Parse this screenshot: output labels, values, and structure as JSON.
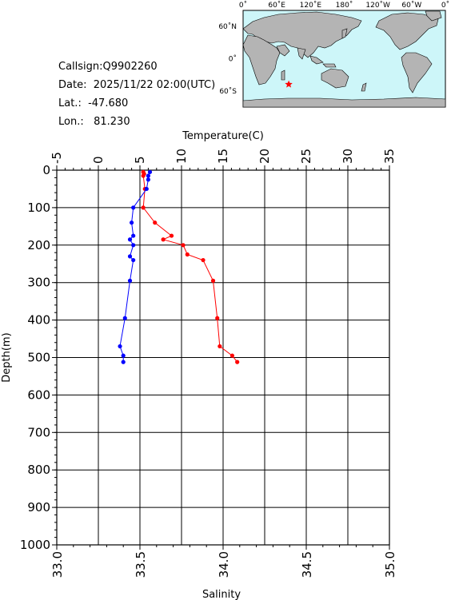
{
  "station": {
    "callsign": "Callsign:Q9902260",
    "date": "Date:  2025/11/22 02:00(UTC)",
    "lat": "Lat.:  -47.680",
    "lon": "Lon.:   81.230"
  },
  "map": {
    "top_labels": [
      "0˚",
      "60˚E",
      "120˚E",
      "180˚",
      "120˚W",
      "60˚W",
      "0˚"
    ],
    "side_labels": [
      "60˚N",
      "0˚",
      "60˚S"
    ],
    "marker_lon": 81.23,
    "marker_lat": -47.68,
    "colors": {
      "ocean": "#cdf6f9",
      "land": "#b4b4b4",
      "marker": "#ff0000"
    }
  },
  "chart_data": {
    "type": "line",
    "title": "",
    "temperature_axis": {
      "label": "Temperature(C)",
      "range": [
        -5,
        35
      ],
      "ticks": [
        "-5",
        "0",
        "5",
        "10",
        "15",
        "20",
        "25",
        "30",
        "35"
      ]
    },
    "salinity_axis": {
      "label": "Salinity",
      "range": [
        33.0,
        35.0
      ],
      "ticks": [
        "33.0",
        "33.5",
        "34.0",
        "34.5",
        "35.0"
      ]
    },
    "depth_axis": {
      "label": "Depth(m)",
      "range": [
        0,
        1000
      ],
      "ticks": [
        "0",
        "100",
        "200",
        "300",
        "400",
        "500",
        "600",
        "700",
        "800",
        "900",
        "1000"
      ],
      "inverted": true
    },
    "grid": true,
    "series": [
      {
        "variable": "temperature",
        "color": "#ff0000",
        "depth": [
          5,
          10,
          15,
          50,
          100,
          140,
          175,
          185,
          200,
          225,
          240,
          295,
          395,
          470,
          495,
          512
        ],
        "values": [
          5.4,
          5.5,
          5.4,
          5.6,
          5.4,
          6.8,
          8.8,
          7.8,
          10.2,
          10.7,
          12.6,
          13.8,
          14.3,
          14.6,
          16.1,
          16.7
        ]
      },
      {
        "variable": "salinity",
        "color": "#0000ff",
        "depth": [
          5,
          15,
          25,
          50,
          100,
          140,
          175,
          185,
          200,
          230,
          240,
          295,
          395,
          470,
          495,
          512
        ],
        "values": [
          33.56,
          33.55,
          33.55,
          33.54,
          33.46,
          33.45,
          33.46,
          33.44,
          33.46,
          33.44,
          33.46,
          33.44,
          33.41,
          33.38,
          33.4,
          33.4
        ]
      }
    ]
  }
}
